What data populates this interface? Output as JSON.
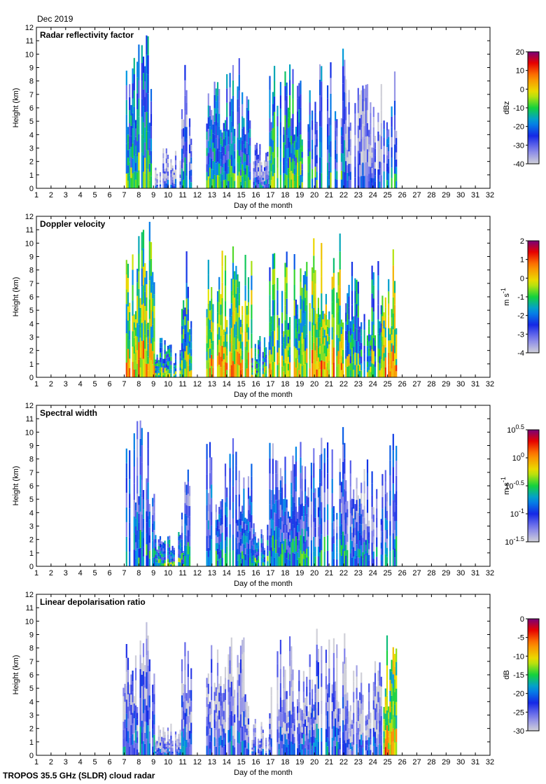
{
  "header": {
    "period": "Dec 2019"
  },
  "footer": {
    "caption": "TROPOS 35.5 GHz (SLDR) cloud radar"
  },
  "chart_data": [
    {
      "type": "heatmap",
      "title": "Radar reflectivity factor",
      "xlabel": "Day of the month",
      "ylabel": "Height (km)",
      "xlim": [
        1,
        32
      ],
      "ylim": [
        0,
        12
      ],
      "xticks": [
        1,
        2,
        3,
        4,
        5,
        6,
        7,
        8,
        9,
        10,
        11,
        12,
        13,
        14,
        15,
        16,
        17,
        18,
        19,
        20,
        21,
        22,
        23,
        24,
        25,
        26,
        27,
        28,
        29,
        30,
        31,
        32
      ],
      "yticks": [
        0,
        1,
        2,
        3,
        4,
        5,
        6,
        7,
        8,
        9,
        10,
        11,
        12
      ],
      "colorbar": {
        "label": "dBz",
        "ticks": [
          "-40",
          "-30",
          "-20",
          "-10",
          "0",
          "10",
          "20"
        ],
        "tick_values": [
          -40,
          -30,
          -20,
          -10,
          0,
          10,
          20
        ],
        "range": [
          -40,
          20
        ],
        "scale": "linear"
      },
      "echoes": [
        {
          "start": 6.9,
          "end": 9.1,
          "top_km": 11.5,
          "value": -18
        },
        {
          "start": 9.1,
          "end": 11.1,
          "top_km": 3.0,
          "value": -34
        },
        {
          "start": 10.9,
          "end": 11.6,
          "top_km": 9.5,
          "value": -28
        },
        {
          "start": 12.6,
          "end": 15.7,
          "top_km": 9.8,
          "value": -20
        },
        {
          "start": 15.7,
          "end": 16.9,
          "top_km": 3.5,
          "value": -30
        },
        {
          "start": 16.9,
          "end": 19.8,
          "top_km": 9.4,
          "value": -16
        },
        {
          "start": 19.8,
          "end": 22.1,
          "top_km": 10.6,
          "value": -22
        },
        {
          "start": 22.1,
          "end": 24.6,
          "top_km": 8.5,
          "value": -33
        },
        {
          "start": 24.6,
          "end": 25.6,
          "top_km": 10.1,
          "value": -24
        }
      ]
    },
    {
      "type": "heatmap",
      "title": "Doppler velocity",
      "xlabel": "Day of the month",
      "ylabel": "Height (km)",
      "xlim": [
        1,
        32
      ],
      "ylim": [
        0,
        12
      ],
      "xticks": [
        1,
        2,
        3,
        4,
        5,
        6,
        7,
        8,
        9,
        10,
        11,
        12,
        13,
        14,
        15,
        16,
        17,
        18,
        19,
        20,
        21,
        22,
        23,
        24,
        25,
        26,
        27,
        28,
        29,
        30,
        31,
        32
      ],
      "yticks": [
        0,
        1,
        2,
        3,
        4,
        5,
        6,
        7,
        8,
        9,
        10,
        11,
        12
      ],
      "colorbar": {
        "label": "m s",
        "label_superscript": "-1",
        "ticks": [
          "-4",
          "-3",
          "-2",
          "-1",
          "0",
          "1",
          "2"
        ],
        "tick_values": [
          -4,
          -3,
          -2,
          -1,
          0,
          1,
          2
        ],
        "range": [
          -4,
          2
        ],
        "scale": "linear"
      },
      "echoes": [
        {
          "start": 6.9,
          "end": 9.1,
          "top_km": 11.6,
          "value": -0.7
        },
        {
          "start": 9.1,
          "end": 11.1,
          "top_km": 3.0,
          "value": -1.6
        },
        {
          "start": 10.9,
          "end": 11.6,
          "top_km": 10.0,
          "value": -1.2
        },
        {
          "start": 12.6,
          "end": 15.7,
          "top_km": 10.0,
          "value": -0.6
        },
        {
          "start": 15.7,
          "end": 16.9,
          "top_km": 3.3,
          "value": -1.4
        },
        {
          "start": 16.9,
          "end": 19.8,
          "top_km": 9.6,
          "value": -1.0
        },
        {
          "start": 19.8,
          "end": 22.1,
          "top_km": 10.8,
          "value": -0.4
        },
        {
          "start": 22.1,
          "end": 24.6,
          "top_km": 8.8,
          "value": -1.5
        },
        {
          "start": 24.6,
          "end": 25.6,
          "top_km": 10.0,
          "value": -0.3
        }
      ]
    },
    {
      "type": "heatmap",
      "title": "Spectral width",
      "xlabel": "Day of the month",
      "ylabel": "Height (km)",
      "xlim": [
        1,
        32
      ],
      "ylim": [
        0,
        12
      ],
      "xticks": [
        1,
        2,
        3,
        4,
        5,
        6,
        7,
        8,
        9,
        10,
        11,
        12,
        13,
        14,
        15,
        16,
        17,
        18,
        19,
        20,
        21,
        22,
        23,
        24,
        25,
        26,
        27,
        28,
        29,
        30,
        31,
        32
      ],
      "yticks": [
        0,
        1,
        2,
        3,
        4,
        5,
        6,
        7,
        8,
        9,
        10,
        11,
        12
      ],
      "colorbar": {
        "label": "m s",
        "label_superscript": "-1",
        "ticks": [
          {
            "base": "10",
            "exp": "-1.5"
          },
          {
            "base": "10",
            "exp": "-1"
          },
          {
            "base": "10",
            "exp": "-0.5"
          },
          {
            "base": "10",
            "exp": "0"
          },
          {
            "base": "10",
            "exp": "0.5"
          }
        ],
        "tick_values": [
          -1.5,
          -1,
          -0.5,
          0,
          0.5
        ],
        "range": [
          -1.5,
          0.5
        ],
        "scale": "log10"
      },
      "echoes": [
        {
          "start": 6.9,
          "end": 9.1,
          "top_km": 11.7,
          "value": -0.95
        },
        {
          "start": 9.1,
          "end": 11.1,
          "top_km": 2.7,
          "value": -0.8
        },
        {
          "start": 10.9,
          "end": 11.6,
          "top_km": 10.0,
          "value": -1.0
        },
        {
          "start": 12.6,
          "end": 15.7,
          "top_km": 9.8,
          "value": -0.95
        },
        {
          "start": 15.7,
          "end": 16.9,
          "top_km": 3.6,
          "value": -0.85
        },
        {
          "start": 16.9,
          "end": 19.8,
          "top_km": 9.4,
          "value": -0.95
        },
        {
          "start": 19.8,
          "end": 22.1,
          "top_km": 10.8,
          "value": -1.0
        },
        {
          "start": 22.1,
          "end": 24.6,
          "top_km": 8.7,
          "value": -1.1
        },
        {
          "start": 24.6,
          "end": 25.6,
          "top_km": 10.1,
          "value": -1.0
        }
      ]
    },
    {
      "type": "heatmap",
      "title": "Linear depolarisation ratio",
      "xlabel": "Day of the month",
      "ylabel": "Height (km)",
      "xlim": [
        1,
        32
      ],
      "ylim": [
        0,
        12
      ],
      "xticks": [
        1,
        2,
        3,
        4,
        5,
        6,
        7,
        8,
        9,
        10,
        11,
        12,
        13,
        14,
        15,
        16,
        17,
        18,
        19,
        20,
        21,
        22,
        23,
        24,
        25,
        26,
        27,
        28,
        29,
        30,
        31,
        32
      ],
      "yticks": [
        0,
        1,
        2,
        3,
        4,
        5,
        6,
        7,
        8,
        9,
        10,
        11,
        12
      ],
      "colorbar": {
        "label": "dB",
        "ticks": [
          "-30",
          "-25",
          "-20",
          "-15",
          "-10",
          "-5",
          "0"
        ],
        "tick_values": [
          -30,
          -25,
          -20,
          -15,
          -10,
          -5,
          0
        ],
        "range": [
          -30,
          0
        ],
        "scale": "linear"
      },
      "echoes": [
        {
          "start": 6.9,
          "end": 9.1,
          "top_km": 10.0,
          "value": -25
        },
        {
          "start": 9.1,
          "end": 11.1,
          "top_km": 2.4,
          "value": -27
        },
        {
          "start": 10.9,
          "end": 11.6,
          "top_km": 8.5,
          "value": -25
        },
        {
          "start": 12.6,
          "end": 15.7,
          "top_km": 8.8,
          "value": -26
        },
        {
          "start": 15.7,
          "end": 16.9,
          "top_km": 3.0,
          "value": -27
        },
        {
          "start": 16.9,
          "end": 19.8,
          "top_km": 8.9,
          "value": -26
        },
        {
          "start": 19.8,
          "end": 22.1,
          "top_km": 9.6,
          "value": -25
        },
        {
          "start": 22.1,
          "end": 24.6,
          "top_km": 7.5,
          "value": -27
        },
        {
          "start": 24.6,
          "end": 25.6,
          "top_km": 9.2,
          "value": -12
        }
      ]
    }
  ]
}
